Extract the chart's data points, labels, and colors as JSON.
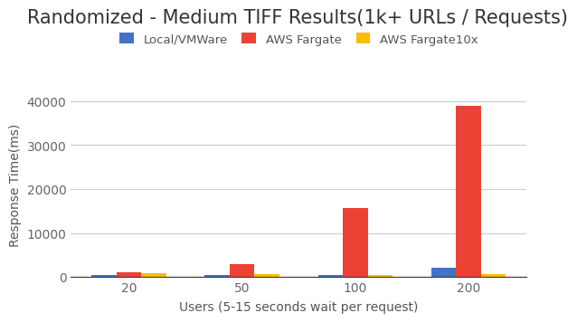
{
  "title": "Randomized - Medium TIFF Results(1k+ URLs / Requests)",
  "xlabel": "Users (5-15 seconds wait per request)",
  "ylabel": "Response Time(ms)",
  "categories": [
    20,
    50,
    100,
    200
  ],
  "series": [
    {
      "label": "Local/VMWare",
      "color": "#4472C4",
      "values": [
        500,
        450,
        500,
        2000
      ]
    },
    {
      "label": "AWS Fargate",
      "color": "#EA4335",
      "values": [
        1100,
        3000,
        15700,
        39000
      ]
    },
    {
      "label": "AWS Fargate10x",
      "color": "#FBBC04",
      "values": [
        900,
        700,
        500,
        700
      ]
    }
  ],
  "ylim": [
    0,
    42000
  ],
  "yticks": [
    0,
    10000,
    20000,
    30000,
    40000
  ],
  "background_color": "#ffffff",
  "grid_color": "#cccccc",
  "title_fontsize": 15,
  "axis_label_fontsize": 10,
  "tick_fontsize": 10,
  "bar_width": 0.22,
  "legend_fontsize": 9.5
}
